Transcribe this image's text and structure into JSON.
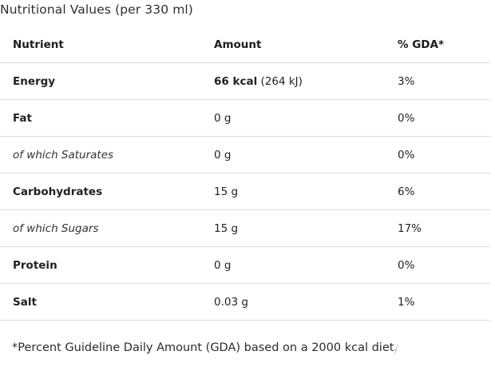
{
  "title": "Nutritional Values (per 330 ml)",
  "table": {
    "headers": [
      "Nutrient",
      "Amount",
      "% GDA*"
    ],
    "rows": [
      {
        "nutrient": "Energy",
        "amount": "66 kcal",
        "amount_extra": " (264 kJ)",
        "gda": "3%"
      },
      {
        "nutrient": "Fat",
        "amount": "0 g",
        "gda": "0%"
      },
      {
        "nutrient": "of which Saturates",
        "amount": "0 g",
        "gda": "0%"
      },
      {
        "nutrient": "Carbohydrates",
        "amount": "15 g",
        "gda": "6%"
      },
      {
        "nutrient": "of which Sugars",
        "amount": "15 g",
        "gda": "17%"
      },
      {
        "nutrient": "Protein",
        "amount": "0 g",
        "gda": "0%"
      },
      {
        "nutrient": "Salt",
        "amount": "0.03 g",
        "gda": "1%"
      }
    ]
  },
  "footnote": "*Percent Guideline Daily Amount (GDA) based on a 2000 kcal diet."
}
